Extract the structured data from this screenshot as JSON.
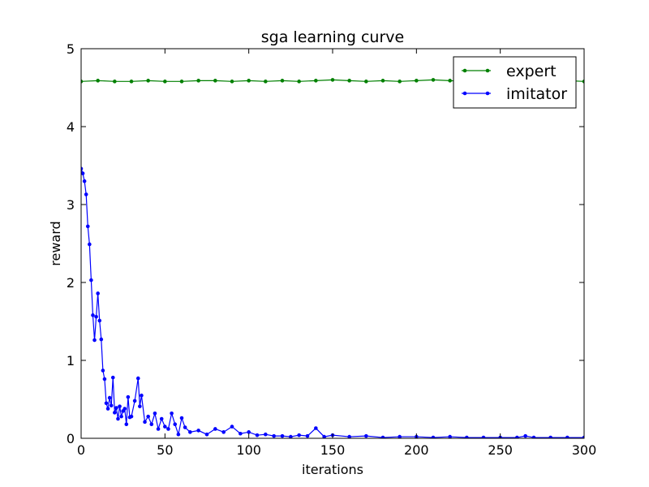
{
  "chart_data": {
    "type": "line",
    "title": "sga learning curve",
    "xlabel": "iterations",
    "ylabel": "reward",
    "xlim": [
      0,
      300
    ],
    "ylim": [
      0,
      5
    ],
    "xticks": [
      0,
      50,
      100,
      150,
      200,
      250,
      300
    ],
    "yticks": [
      0,
      1,
      2,
      3,
      4,
      5
    ],
    "grid": false,
    "legend": "top-right",
    "series": [
      {
        "name": "expert",
        "color": "#008000",
        "marker": "dot",
        "x": [
          0,
          10,
          20,
          30,
          40,
          50,
          60,
          70,
          80,
          90,
          100,
          110,
          120,
          130,
          140,
          150,
          160,
          170,
          180,
          190,
          200,
          210,
          220,
          230,
          240,
          250,
          260,
          270,
          280,
          290,
          300
        ],
        "y": [
          4.58,
          4.59,
          4.58,
          4.58,
          4.59,
          4.58,
          4.58,
          4.59,
          4.59,
          4.58,
          4.59,
          4.58,
          4.59,
          4.58,
          4.59,
          4.6,
          4.59,
          4.58,
          4.59,
          4.58,
          4.59,
          4.6,
          4.59,
          4.58,
          4.59,
          4.58,
          4.59,
          4.58,
          4.59,
          4.59,
          4.58
        ]
      },
      {
        "name": "imitator",
        "color": "#0000ff",
        "marker": "dot",
        "x": [
          0,
          1,
          2,
          3,
          4,
          5,
          6,
          7,
          8,
          9,
          10,
          11,
          12,
          13,
          14,
          15,
          16,
          17,
          18,
          19,
          20,
          21,
          22,
          23,
          24,
          25,
          26,
          27,
          28,
          29,
          30,
          32,
          34,
          35,
          36,
          38,
          40,
          42,
          44,
          46,
          48,
          50,
          52,
          54,
          56,
          58,
          60,
          62,
          65,
          70,
          75,
          80,
          85,
          90,
          95,
          100,
          105,
          110,
          115,
          120,
          125,
          130,
          135,
          140,
          145,
          150,
          160,
          170,
          180,
          190,
          200,
          210,
          220,
          230,
          240,
          250,
          260,
          265,
          270,
          280,
          290,
          300
        ],
        "y": [
          3.46,
          3.4,
          3.3,
          3.13,
          2.72,
          2.49,
          2.03,
          1.58,
          1.26,
          1.56,
          1.86,
          1.51,
          1.27,
          0.87,
          0.76,
          0.45,
          0.38,
          0.52,
          0.42,
          0.78,
          0.33,
          0.39,
          0.25,
          0.41,
          0.28,
          0.35,
          0.38,
          0.18,
          0.53,
          0.27,
          0.28,
          0.48,
          0.77,
          0.41,
          0.55,
          0.21,
          0.28,
          0.18,
          0.32,
          0.12,
          0.25,
          0.15,
          0.12,
          0.32,
          0.18,
          0.05,
          0.26,
          0.14,
          0.08,
          0.1,
          0.05,
          0.12,
          0.08,
          0.15,
          0.06,
          0.08,
          0.04,
          0.05,
          0.03,
          0.03,
          0.02,
          0.04,
          0.03,
          0.13,
          0.02,
          0.04,
          0.02,
          0.03,
          0.01,
          0.02,
          0.02,
          0.01,
          0.02,
          0.01,
          0.01,
          0.01,
          0.01,
          0.03,
          0.01,
          0.01,
          0.01,
          0.01
        ]
      }
    ]
  }
}
